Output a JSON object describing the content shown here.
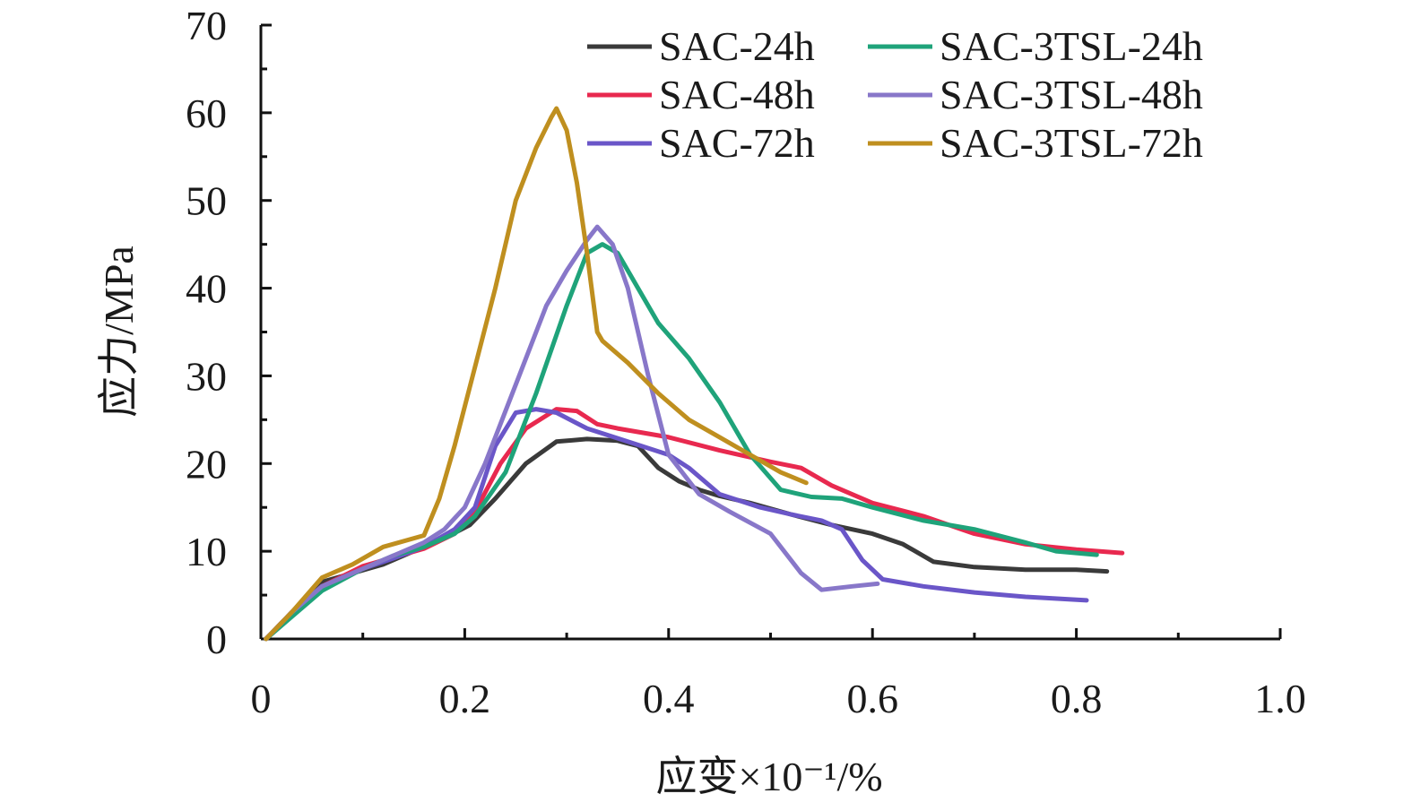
{
  "chart_data": {
    "type": "line",
    "title": "",
    "xlabel": "应变×10⁻¹/%",
    "ylabel": "应力/MPa",
    "xlim": [
      0,
      1.0
    ],
    "ylim": [
      0,
      70
    ],
    "x_ticks": [
      "0",
      "0.2",
      "0.4",
      "0.6",
      "0.8",
      "1.0"
    ],
    "y_ticks": [
      "0",
      "10",
      "20",
      "30",
      "40",
      "50",
      "60",
      "70"
    ],
    "grid": false,
    "legend_position": "top-right",
    "series": [
      {
        "name": "SAC-24h",
        "color": "#3a3a3a",
        "points": [
          [
            0.005,
            0
          ],
          [
            0.03,
            3
          ],
          [
            0.06,
            6.5
          ],
          [
            0.09,
            7.5
          ],
          [
            0.12,
            8.5
          ],
          [
            0.15,
            10
          ],
          [
            0.18,
            11.5
          ],
          [
            0.205,
            13
          ],
          [
            0.23,
            16
          ],
          [
            0.26,
            20
          ],
          [
            0.29,
            22.5
          ],
          [
            0.32,
            22.8
          ],
          [
            0.35,
            22.6
          ],
          [
            0.37,
            22
          ],
          [
            0.39,
            19.5
          ],
          [
            0.41,
            18
          ],
          [
            0.43,
            17
          ],
          [
            0.45,
            16.3
          ],
          [
            0.48,
            15.5
          ],
          [
            0.52,
            14.2
          ],
          [
            0.56,
            13
          ],
          [
            0.6,
            12
          ],
          [
            0.63,
            10.8
          ],
          [
            0.66,
            8.8
          ],
          [
            0.7,
            8.2
          ],
          [
            0.75,
            7.9
          ],
          [
            0.8,
            7.9
          ],
          [
            0.83,
            7.7
          ]
        ]
      },
      {
        "name": "SAC-48h",
        "color": "#e8294f",
        "points": [
          [
            0.005,
            0
          ],
          [
            0.03,
            3
          ],
          [
            0.06,
            6
          ],
          [
            0.1,
            8.3
          ],
          [
            0.13,
            9.3
          ],
          [
            0.16,
            10.3
          ],
          [
            0.19,
            12
          ],
          [
            0.21,
            14.5
          ],
          [
            0.235,
            20
          ],
          [
            0.26,
            24
          ],
          [
            0.29,
            26.2
          ],
          [
            0.31,
            26
          ],
          [
            0.33,
            24.5
          ],
          [
            0.35,
            24
          ],
          [
            0.4,
            23
          ],
          [
            0.45,
            21.5
          ],
          [
            0.5,
            20.2
          ],
          [
            0.53,
            19.5
          ],
          [
            0.56,
            17.5
          ],
          [
            0.6,
            15.5
          ],
          [
            0.65,
            14
          ],
          [
            0.7,
            12
          ],
          [
            0.75,
            10.8
          ],
          [
            0.8,
            10.2
          ],
          [
            0.845,
            9.8
          ]
        ]
      },
      {
        "name": "SAC-72h",
        "color": "#6a56c8",
        "points": [
          [
            0.005,
            0
          ],
          [
            0.03,
            3
          ],
          [
            0.06,
            6
          ],
          [
            0.1,
            8
          ],
          [
            0.13,
            9.2
          ],
          [
            0.16,
            10.5
          ],
          [
            0.19,
            12.5
          ],
          [
            0.21,
            15
          ],
          [
            0.23,
            22
          ],
          [
            0.25,
            25.8
          ],
          [
            0.27,
            26.2
          ],
          [
            0.29,
            25.8
          ],
          [
            0.32,
            24
          ],
          [
            0.36,
            22.5
          ],
          [
            0.4,
            21
          ],
          [
            0.42,
            19.5
          ],
          [
            0.45,
            16.5
          ],
          [
            0.49,
            15
          ],
          [
            0.52,
            14.2
          ],
          [
            0.55,
            13.5
          ],
          [
            0.57,
            12.5
          ],
          [
            0.59,
            9
          ],
          [
            0.61,
            6.8
          ],
          [
            0.65,
            6
          ],
          [
            0.7,
            5.3
          ],
          [
            0.75,
            4.8
          ],
          [
            0.81,
            4.4
          ]
        ]
      },
      {
        "name": "SAC-3TSL-24h",
        "color": "#1fa37a",
        "points": [
          [
            0.005,
            0
          ],
          [
            0.03,
            2.5
          ],
          [
            0.06,
            5.5
          ],
          [
            0.1,
            8
          ],
          [
            0.13,
            9.5
          ],
          [
            0.16,
            10.5
          ],
          [
            0.19,
            12
          ],
          [
            0.21,
            14
          ],
          [
            0.24,
            19
          ],
          [
            0.27,
            28
          ],
          [
            0.3,
            38
          ],
          [
            0.32,
            44
          ],
          [
            0.335,
            45
          ],
          [
            0.35,
            44
          ],
          [
            0.37,
            40
          ],
          [
            0.39,
            36
          ],
          [
            0.42,
            32
          ],
          [
            0.45,
            27
          ],
          [
            0.48,
            21
          ],
          [
            0.51,
            17
          ],
          [
            0.54,
            16.2
          ],
          [
            0.57,
            16
          ],
          [
            0.6,
            15
          ],
          [
            0.65,
            13.5
          ],
          [
            0.7,
            12.5
          ],
          [
            0.75,
            11
          ],
          [
            0.78,
            10
          ],
          [
            0.82,
            9.6
          ]
        ]
      },
      {
        "name": "SAC-3TSL-48h",
        "color": "#8877c9",
        "points": [
          [
            0.005,
            0
          ],
          [
            0.03,
            3
          ],
          [
            0.06,
            6
          ],
          [
            0.1,
            8
          ],
          [
            0.13,
            9.5
          ],
          [
            0.16,
            11
          ],
          [
            0.18,
            12.5
          ],
          [
            0.2,
            15
          ],
          [
            0.22,
            20
          ],
          [
            0.25,
            29
          ],
          [
            0.28,
            38
          ],
          [
            0.3,
            42
          ],
          [
            0.32,
            45.5
          ],
          [
            0.33,
            47
          ],
          [
            0.345,
            45
          ],
          [
            0.36,
            40
          ],
          [
            0.38,
            30
          ],
          [
            0.4,
            21
          ],
          [
            0.43,
            16.5
          ],
          [
            0.46,
            14.5
          ],
          [
            0.5,
            12
          ],
          [
            0.53,
            7.5
          ],
          [
            0.55,
            5.6
          ],
          [
            0.58,
            6
          ],
          [
            0.605,
            6.3
          ]
        ]
      },
      {
        "name": "SAC-3TSL-72h",
        "color": "#bf8f1f",
        "points": [
          [
            0.005,
            0
          ],
          [
            0.03,
            3
          ],
          [
            0.06,
            7
          ],
          [
            0.09,
            8.5
          ],
          [
            0.12,
            10.5
          ],
          [
            0.16,
            11.8
          ],
          [
            0.175,
            16
          ],
          [
            0.19,
            22
          ],
          [
            0.21,
            31
          ],
          [
            0.23,
            40
          ],
          [
            0.25,
            50
          ],
          [
            0.27,
            56
          ],
          [
            0.285,
            59.5
          ],
          [
            0.29,
            60.5
          ],
          [
            0.3,
            58
          ],
          [
            0.31,
            52
          ],
          [
            0.32,
            44
          ],
          [
            0.33,
            35
          ],
          [
            0.335,
            34
          ],
          [
            0.36,
            31.5
          ],
          [
            0.39,
            28
          ],
          [
            0.42,
            25
          ],
          [
            0.45,
            23
          ],
          [
            0.48,
            21
          ],
          [
            0.51,
            19
          ],
          [
            0.535,
            17.8
          ]
        ]
      }
    ]
  }
}
